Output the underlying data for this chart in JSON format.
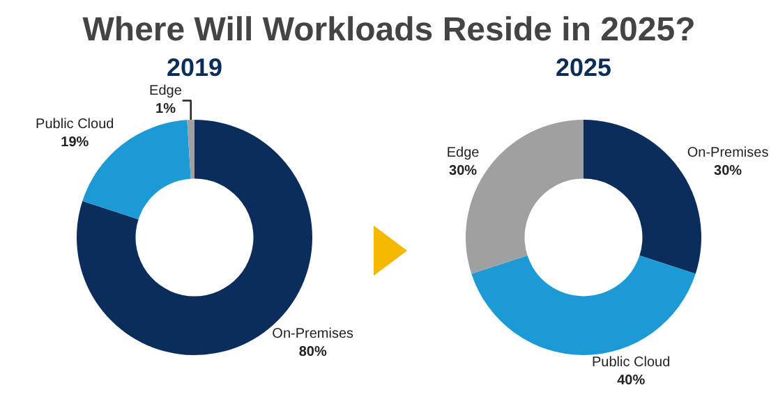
{
  "chart_data": [
    {
      "type": "donut",
      "title": "Where Will Workloads Reside in 2025?",
      "subtitle": "2019",
      "categories": [
        "On-Premises",
        "Public Cloud",
        "Edge"
      ],
      "values": [
        80,
        19,
        1
      ],
      "value_labels": [
        "80%",
        "19%",
        "1%"
      ],
      "colors": [
        "#0b2d5b",
        "#1b9ad6",
        "#a0a0a0"
      ],
      "legend": false
    },
    {
      "type": "donut",
      "subtitle": "2025",
      "categories": [
        "On-Premises",
        "Public Cloud",
        "Edge"
      ],
      "values": [
        30,
        40,
        30
      ],
      "value_labels": [
        "30%",
        "40%",
        "30%"
      ],
      "colors": [
        "#0b2d5b",
        "#1b9ad6",
        "#a0a0a0"
      ],
      "legend": false
    }
  ]
}
